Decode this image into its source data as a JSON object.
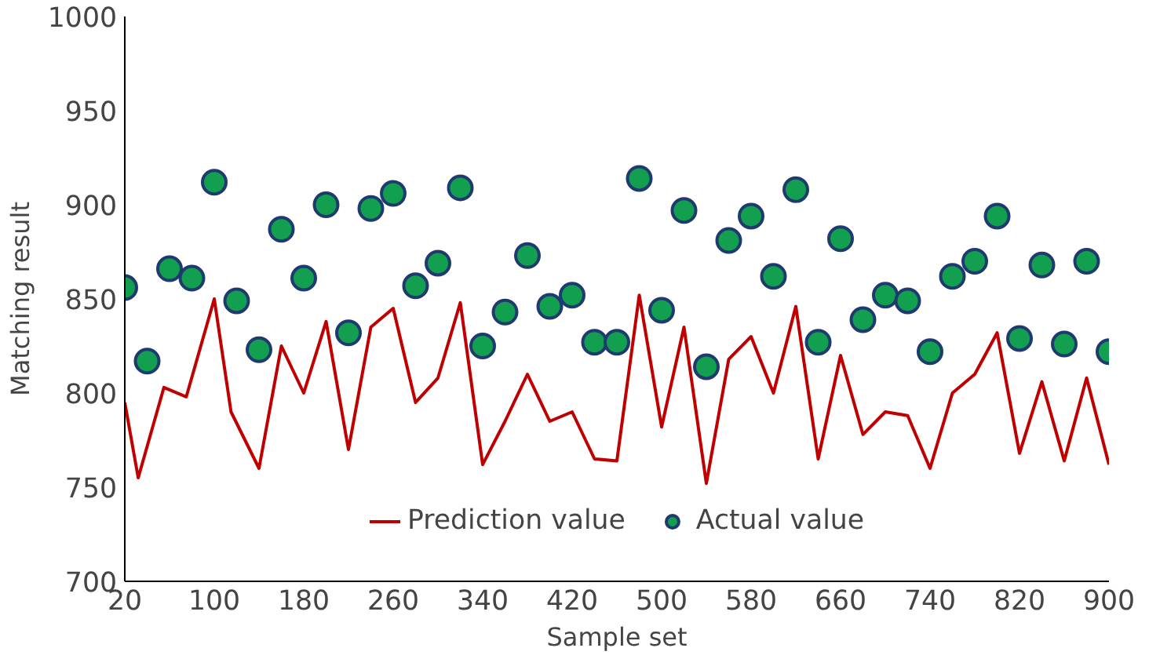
{
  "chart_data": {
    "type": "line",
    "xlabel": "Sample set",
    "ylabel": "Matching result",
    "xlim": [
      20,
      900
    ],
    "xticks": [
      20,
      100,
      180,
      260,
      340,
      420,
      500,
      580,
      660,
      740,
      820,
      900
    ],
    "ylim": [
      700,
      1000
    ],
    "yticks": [
      700,
      750,
      800,
      850,
      900,
      950,
      1000
    ],
    "grid": false,
    "legend": "bottom",
    "series": [
      {
        "name": "Prediction value",
        "color": "#c00000",
        "marker": "none",
        "x": [
          20,
          32,
          55,
          75,
          100,
          115,
          140,
          160,
          180,
          200,
          220,
          240,
          260,
          280,
          300,
          320,
          340,
          360,
          380,
          400,
          420,
          440,
          460,
          480,
          500,
          520,
          540,
          560,
          580,
          600,
          620,
          640,
          660,
          680,
          700,
          720,
          740,
          760,
          780,
          800,
          820,
          840,
          860,
          880,
          900
        ],
        "values": [
          795,
          755,
          803,
          798,
          850,
          790,
          760,
          825,
          800,
          838,
          770,
          835,
          845,
          795,
          808,
          848,
          762,
          785,
          810,
          785,
          790,
          765,
          764,
          852,
          782,
          835,
          752,
          818,
          830,
          800,
          846,
          765,
          820,
          778,
          790,
          788,
          760,
          800,
          810,
          832,
          768,
          806,
          764,
          808,
          762
        ]
      },
      {
        "name": "Actual value",
        "type": "scatter",
        "color": "#12a050",
        "marker": "circle",
        "x": [
          20,
          40,
          60,
          80,
          100,
          120,
          140,
          160,
          180,
          200,
          220,
          240,
          260,
          280,
          300,
          320,
          340,
          360,
          380,
          400,
          420,
          440,
          460,
          480,
          500,
          520,
          540,
          560,
          580,
          600,
          620,
          640,
          660,
          680,
          700,
          720,
          740,
          760,
          780,
          800,
          820,
          840,
          860,
          880,
          900
        ],
        "values": [
          856,
          817,
          866,
          861,
          912,
          849,
          823,
          887,
          861,
          900,
          832,
          898,
          906,
          857,
          869,
          909,
          825,
          843,
          873,
          846,
          852,
          827,
          827,
          914,
          844,
          897,
          814,
          881,
          894,
          862,
          908,
          827,
          882,
          839,
          852,
          849,
          822,
          862,
          870,
          894,
          829,
          868,
          826,
          870,
          822
        ]
      }
    ]
  }
}
